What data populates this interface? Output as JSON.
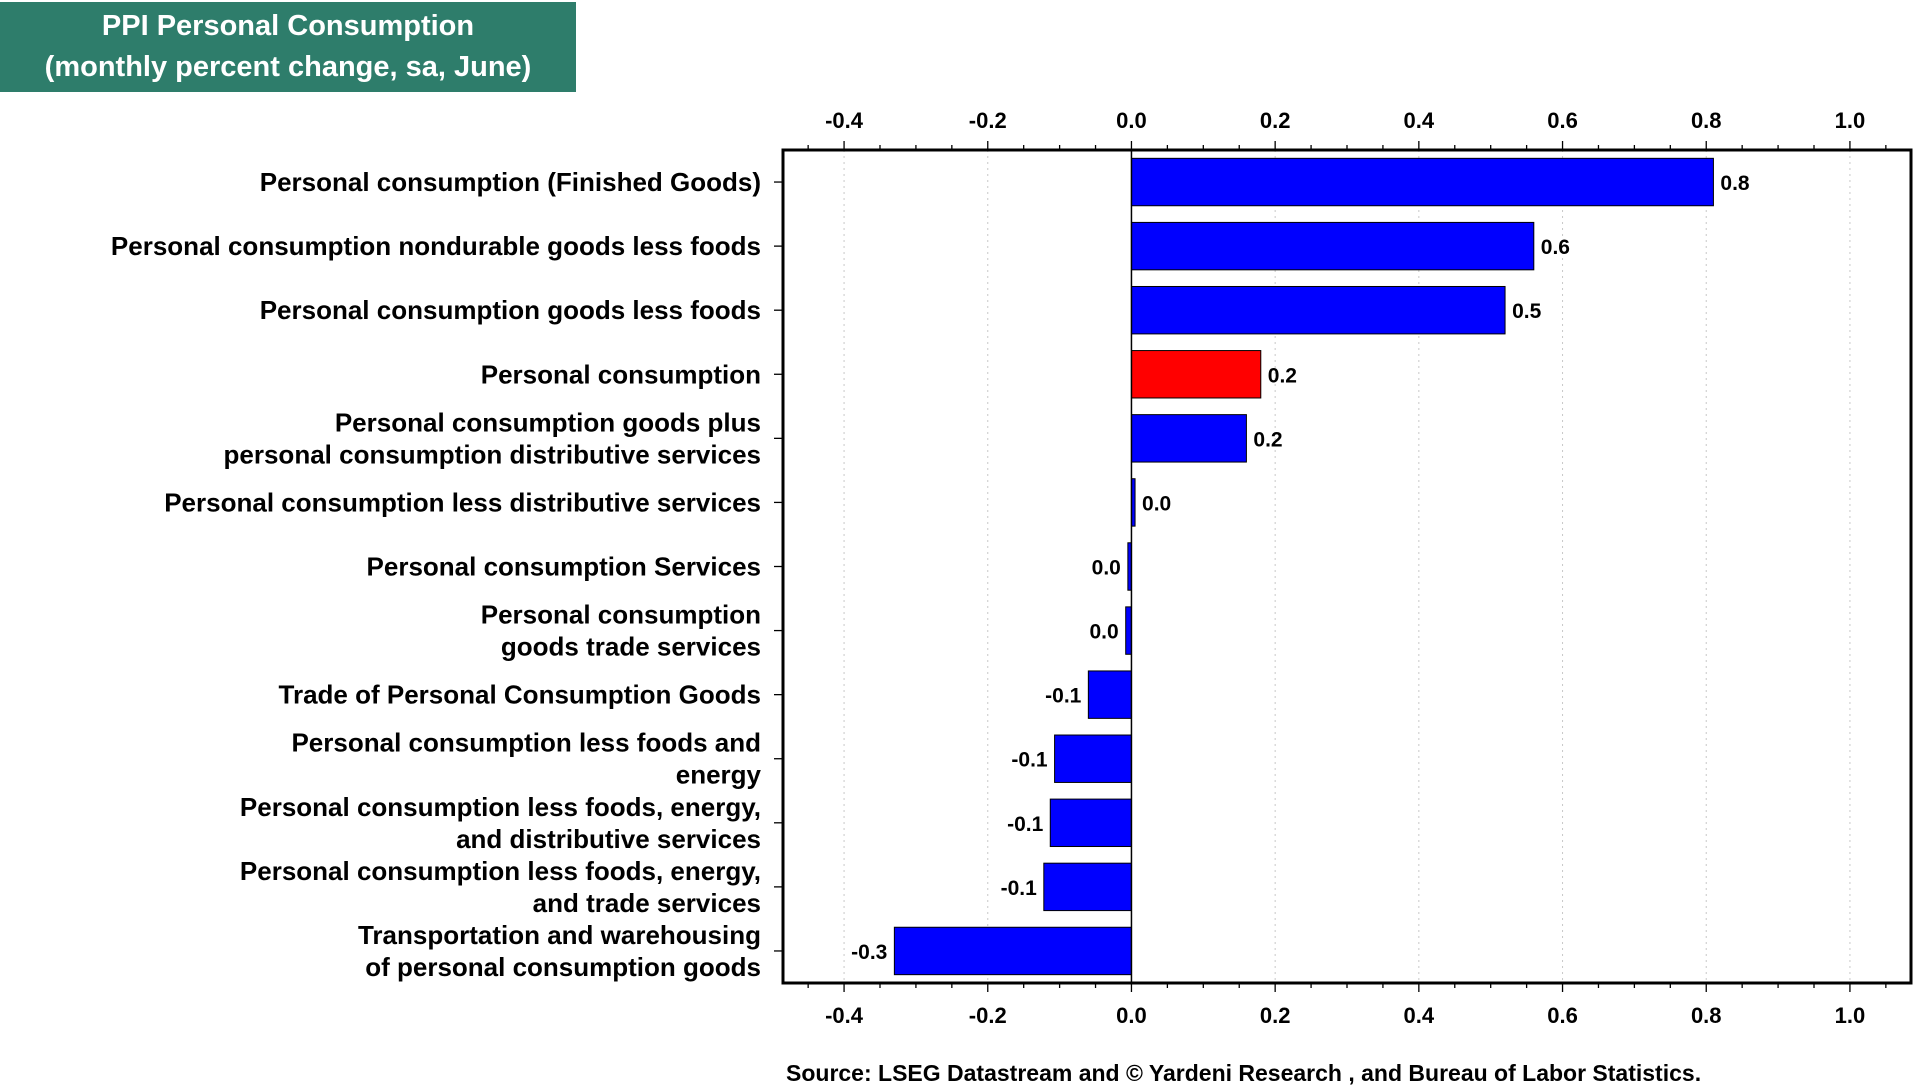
{
  "chart_data": {
    "type": "bar",
    "orientation": "horizontal",
    "title": "PPI Personal Consumption",
    "subtitle": "(monthly percent change, sa, June)",
    "categories": [
      [
        "Personal consumption (Finished Goods)"
      ],
      [
        "Personal consumption nondurable goods less foods"
      ],
      [
        "Personal consumption goods less foods"
      ],
      [
        "Personal consumption"
      ],
      [
        "Personal consumption goods plus",
        "personal consumption distributive services"
      ],
      [
        "Personal consumption less distributive services"
      ],
      [
        "Personal consumption Services"
      ],
      [
        "Personal consumption",
        "goods trade services"
      ],
      [
        "Trade of Personal Consumption Goods"
      ],
      [
        "Personal consumption less foods and",
        "energy"
      ],
      [
        "Personal consumption less foods, energy,",
        "and distributive services"
      ],
      [
        "Personal consumption less foods, energy,",
        "and trade services"
      ],
      [
        "Transportation and warehousing",
        "of personal consumption goods"
      ]
    ],
    "values": [
      0.81,
      0.56,
      0.52,
      0.18,
      0.16,
      0.005,
      -0.005,
      -0.008,
      -0.06,
      -0.107,
      -0.113,
      -0.122,
      -0.33
    ],
    "data_labels": [
      "0.8",
      "0.6",
      "0.5",
      "0.2",
      "0.2",
      "0.0",
      "0.0",
      "0.0",
      "-0.1",
      "-0.1",
      "-0.1",
      "-0.1",
      "-0.3"
    ],
    "highlight_index": 3,
    "xlim": [
      -0.485,
      1.085
    ],
    "x_ticks": [
      -0.4,
      -0.2,
      0.0,
      0.2,
      0.4,
      0.6,
      0.8,
      1.0
    ],
    "x_tick_labels": [
      "-0.4",
      "-0.2",
      "0.0",
      "0.2",
      "0.4",
      "0.6",
      "0.8",
      "1.0"
    ],
    "axis_position": "top-and-bottom",
    "grid": "vertical-dotted",
    "colors": {
      "bar": "#0000ff",
      "highlight": "#ff0000",
      "title_bg": "#2e7d6b",
      "title_text": "#ffffff"
    }
  },
  "source": "Source: LSEG Datastream and © Yardeni Research , and Bureau of Labor Statistics."
}
